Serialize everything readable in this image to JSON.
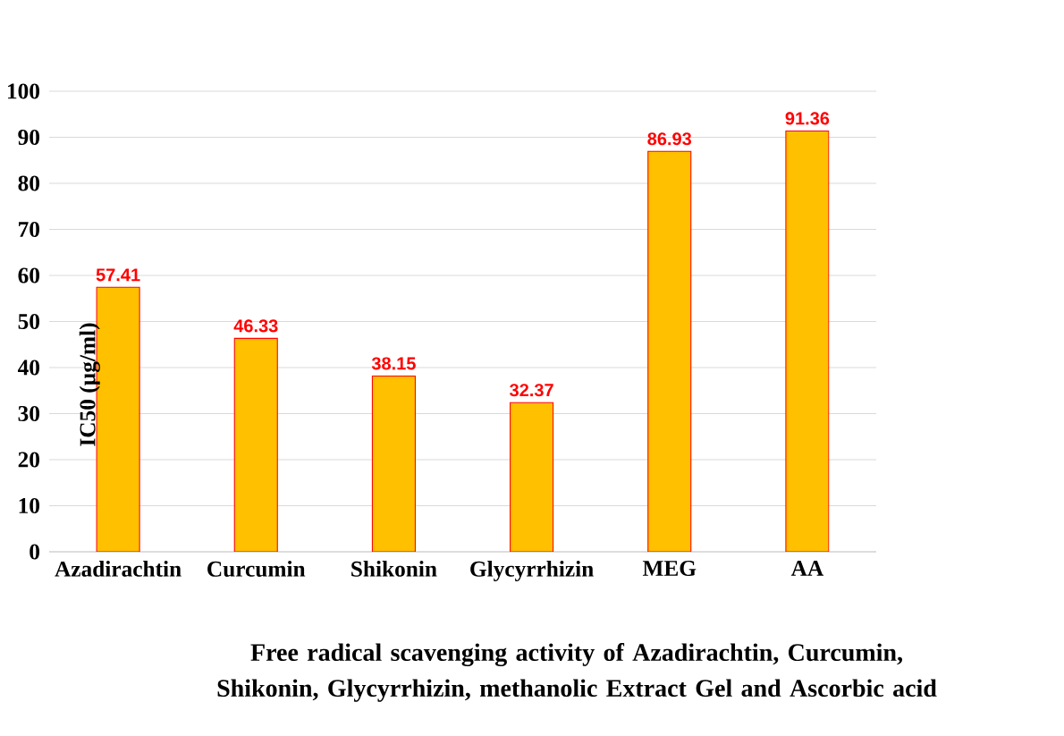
{
  "chart_data": {
    "type": "bar",
    "title": "Free radical scavenging activity of Azadirachtin, Curcumin, Shikonin, Glycyrrhizin, methanolic Extract Gel and Ascorbic acid",
    "ylabel": "IC50 (µg/ml)",
    "categories": [
      "Azadirachtin",
      "Curcumin",
      "Shikonin",
      "Glycyrrhizin",
      "MEG",
      "AA"
    ],
    "values": [
      57.41,
      46.33,
      38.15,
      32.37,
      86.93,
      91.36
    ],
    "color": "#ffc000",
    "data_labels": true,
    "ylim": [
      0,
      100
    ],
    "yticks": [
      0,
      10,
      20,
      30,
      40,
      50,
      60,
      70,
      80,
      90,
      100
    ],
    "grid": "y"
  }
}
